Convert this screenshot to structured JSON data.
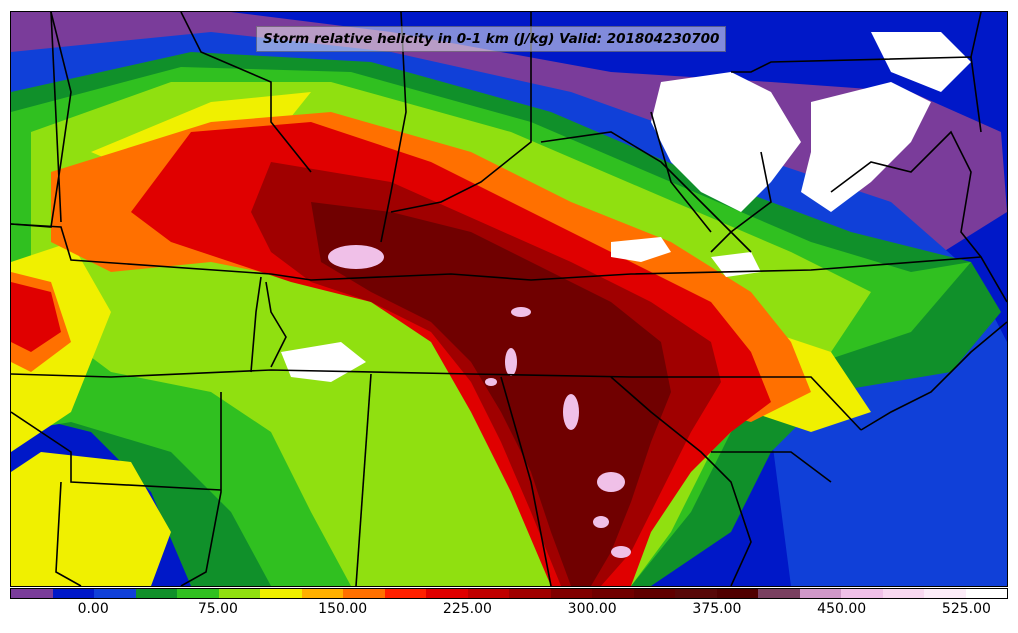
{
  "title": "Storm relative helicity in 0-1 km (J/kg) Valid: 201804230700",
  "colorbar": {
    "colors": [
      "#7a3c9a",
      "#0018c8",
      "#1040d8",
      "#10902a",
      "#30c020",
      "#90e010",
      "#f0f000",
      "#ffb000",
      "#ff7000",
      "#ff2000",
      "#e00000",
      "#c00000",
      "#a00000",
      "#800000",
      "#700000",
      "#600000",
      "#580808",
      "#500000",
      "#7a4060",
      "#d098c8",
      "#f0c0e8",
      "#f8d8f0",
      "#fcecf8",
      "#ffffff"
    ],
    "tick_labels": [
      "0.00",
      "75.00",
      "150.00",
      "225.00",
      "300.00",
      "375.00",
      "450.00",
      "525.00"
    ],
    "tick_values": [
      0,
      75,
      150,
      225,
      300,
      375,
      450,
      525
    ],
    "min": -50,
    "max": 550
  },
  "map_layers": [
    {
      "name": "purple-region",
      "color": "#7a3c9a"
    },
    {
      "name": "blue-region",
      "color": "#1040d8"
    },
    {
      "name": "dark-green-region",
      "color": "#10902a"
    },
    {
      "name": "green-region",
      "color": "#30c020"
    },
    {
      "name": "yellow-green-region",
      "color": "#90e010"
    },
    {
      "name": "yellow-region",
      "color": "#f0f000"
    },
    {
      "name": "orange-region",
      "color": "#ff7000"
    },
    {
      "name": "red-region",
      "color": "#e00000"
    },
    {
      "name": "dark-red-region",
      "color": "#a00000"
    },
    {
      "name": "maroon-region",
      "color": "#700000"
    },
    {
      "name": "pink-region",
      "color": "#f0c0e8"
    },
    {
      "name": "white-region",
      "color": "#ffffff"
    }
  ]
}
